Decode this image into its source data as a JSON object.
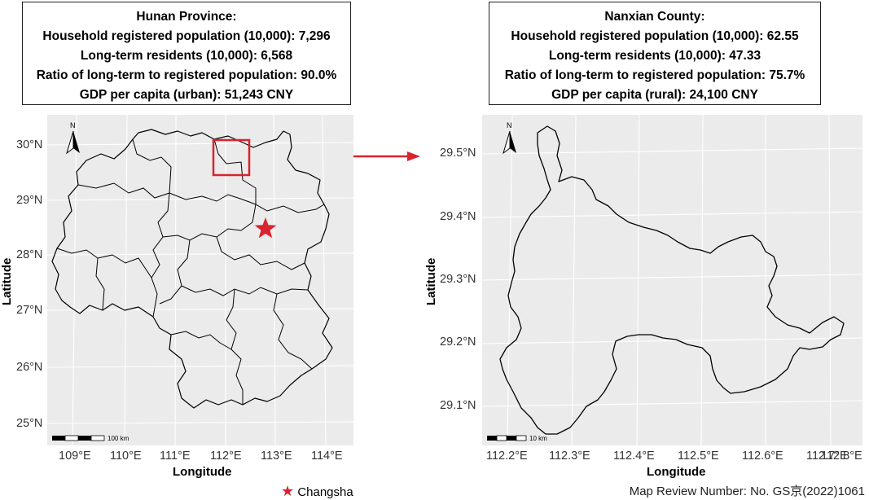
{
  "hunan_box": {
    "title": "Hunan Province:",
    "line1": "Household registered population (10,000): 7,296",
    "line2": "Long-term residents (10,000): 6,568",
    "line3": "Ratio of long-term to registered population: 90.0%",
    "line4": "GDP per capita (urban): 51,243 CNY"
  },
  "nanxian_box": {
    "title": "Nanxian County:",
    "line1": "Household registered population (10,000): 62.55",
    "line2": "Long-term residents (10,000): 47.33",
    "line3": "Ratio of long-term to registered population: 75.7%",
    "line4": "GDP per capita (rural): 24,100 CNY"
  },
  "left_map": {
    "north_label": "N",
    "y_ticks": [
      "30°N",
      "29°N",
      "28°N",
      "27°N",
      "26°N",
      "25°N"
    ],
    "x_ticks": [
      "109°E",
      "110°E",
      "111°E",
      "112°E",
      "113°E",
      "114°E"
    ],
    "xlabel": "Longitude",
    "ylabel": "Latitude",
    "scale_label": "100 km"
  },
  "right_map": {
    "north_label": "N",
    "y_ticks": [
      "29.5°N",
      "29.4°N",
      "29.3°N",
      "29.2°N",
      "29.1°N"
    ],
    "x_ticks": [
      "112.2°E",
      "112.3°E",
      "112.4°E",
      "112.5°E",
      "112.6°E",
      "112.7°E",
      "112.8°E"
    ],
    "xlabel": "Longitude",
    "ylabel": "Latitude",
    "scale_label": "10 km"
  },
  "legend": {
    "symbol": "★",
    "label": "Changsha"
  },
  "footer": "Map Review Number: No. GS京(2022)1061",
  "colors": {
    "panel_bg": "#ebebeb",
    "grid": "#ffffff",
    "highlight": "#d9232e",
    "boundary": "#000000"
  }
}
